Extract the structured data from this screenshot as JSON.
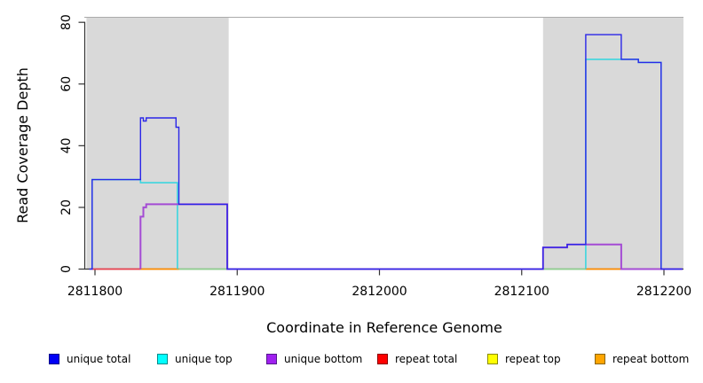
{
  "chart_data": {
    "type": "line",
    "style": "step",
    "title": "",
    "xlabel": "Coordinate in Reference Genome",
    "ylabel": "Read Coverage Depth",
    "xlim": [
      2811792,
      2812214
    ],
    "ylim": [
      0,
      82
    ],
    "grid": false,
    "x_ticks": [
      {
        "coord": 2811800,
        "label": "2811800"
      },
      {
        "coord": 2811900,
        "label": "2811900"
      },
      {
        "coord": 2812000,
        "label": "2812000"
      },
      {
        "coord": 2812100,
        "label": "2812100"
      },
      {
        "coord": 2812200,
        "label": "2812200"
      }
    ],
    "y_ticks": [
      {
        "value": 0,
        "label": "0"
      },
      {
        "value": 20,
        "label": "20"
      },
      {
        "value": 40,
        "label": "40"
      },
      {
        "value": 60,
        "label": "60"
      },
      {
        "value": 80,
        "label": "80"
      }
    ],
    "shade_color": "#D9D9D9",
    "shaded_regions": [
      {
        "from": 2811794,
        "to": 2811894
      },
      {
        "from": 2812115,
        "to": 2812214
      }
    ],
    "series": [
      {
        "name": "repeat top",
        "line_color": "#8FCE8F",
        "width": 1.8,
        "segments": [
          [
            [
              2811859,
              0
            ],
            [
              2811893,
              0
            ]
          ],
          [
            [
              2812115,
              0
            ],
            [
              2812145,
              0
            ]
          ]
        ]
      },
      {
        "name": "repeat total",
        "line_color": "#E8414F",
        "width": 1.8,
        "segments": [
          [
            [
              2811798,
              0
            ],
            [
              2811832,
              0
            ]
          ],
          [
            [
              2812170,
              0
            ],
            [
              2812198,
              0
            ]
          ]
        ]
      },
      {
        "name": "repeat bottom",
        "line_color": "#FF8C00",
        "width": 1.8,
        "segments": [
          [
            [
              2811832,
              0
            ],
            [
              2811859,
              0
            ]
          ],
          [
            [
              2812145,
              0
            ],
            [
              2812170,
              0
            ]
          ]
        ]
      },
      {
        "name": "unique top",
        "line_color": "#3CD6DE",
        "width": 1.6,
        "segments": [
          [
            [
              2811798,
              0
            ],
            [
              2811798,
              29
            ],
            [
              2811832,
              29
            ],
            [
              2811832,
              28
            ],
            [
              2811858,
              28
            ],
            [
              2811858,
              0
            ]
          ],
          [
            [
              2812145,
              0
            ],
            [
              2812145,
              68
            ],
            [
              2812182,
              68
            ],
            [
              2812182,
              67
            ],
            [
              2812198,
              67
            ],
            [
              2812198,
              0
            ]
          ]
        ]
      },
      {
        "name": "unique bottom",
        "line_color": "#A44BD4",
        "width": 2,
        "segments": [
          [
            [
              2811832,
              0
            ],
            [
              2811832,
              17
            ],
            [
              2811834,
              17
            ],
            [
              2811834,
              20
            ],
            [
              2811836,
              20
            ],
            [
              2811836,
              21
            ],
            [
              2811893,
              21
            ],
            [
              2811893,
              0
            ],
            [
              2812115,
              0
            ],
            [
              2812115,
              7
            ],
            [
              2812132,
              7
            ],
            [
              2812132,
              8
            ],
            [
              2812170,
              8
            ],
            [
              2812170,
              0
            ],
            [
              2812213,
              0
            ]
          ]
        ]
      },
      {
        "name": "unique total",
        "line_color": "#2A26E8",
        "width": 1.4,
        "segments": [
          [
            [
              2811796,
              0
            ],
            [
              2811798,
              0
            ],
            [
              2811798,
              29
            ],
            [
              2811832,
              29
            ],
            [
              2811832,
              49
            ],
            [
              2811834,
              49
            ],
            [
              2811834,
              48
            ],
            [
              2811836,
              48
            ],
            [
              2811836,
              49
            ],
            [
              2811857,
              49
            ],
            [
              2811857,
              46
            ],
            [
              2811859,
              46
            ],
            [
              2811859,
              21
            ],
            [
              2811893,
              21
            ],
            [
              2811893,
              0
            ],
            [
              2812115,
              0
            ],
            [
              2812115,
              7
            ],
            [
              2812132,
              7
            ],
            [
              2812132,
              8
            ],
            [
              2812145,
              8
            ],
            [
              2812145,
              76
            ],
            [
              2812170,
              76
            ],
            [
              2812170,
              68
            ],
            [
              2812182,
              68
            ],
            [
              2812182,
              67
            ],
            [
              2812198,
              67
            ],
            [
              2812198,
              0
            ],
            [
              2812213,
              0
            ]
          ]
        ]
      }
    ]
  },
  "legend": {
    "items": [
      {
        "label": "unique total",
        "color": "#0000F5",
        "border": "#00008B"
      },
      {
        "label": "unique top",
        "color": "#00FFFF",
        "border": "#008B8B"
      },
      {
        "label": "unique bottom",
        "color": "#A020F0",
        "border": "#551A8B"
      },
      {
        "label": "repeat total",
        "color": "#FF0000",
        "border": "#8B0000"
      },
      {
        "label": "repeat top",
        "color": "#FFFF00",
        "border": "#8B8B00"
      },
      {
        "label": "repeat bottom",
        "color": "#FFA500",
        "border": "#8B6500"
      }
    ]
  }
}
